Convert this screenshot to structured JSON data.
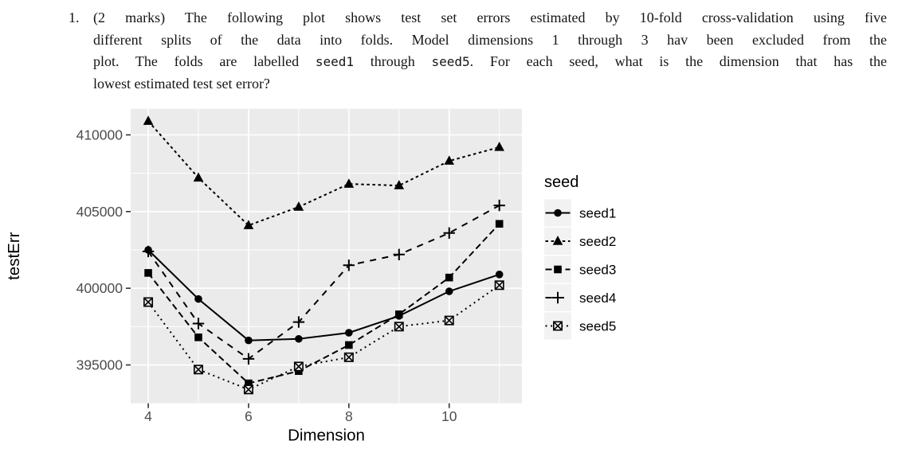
{
  "question": {
    "number": "1.",
    "line1": "(2 marks) The following plot shows test set errors estimated by 10-fold cross-validation using five",
    "line2": "different splits of the data into folds. Model dimensions 1 through 3 hav been excluded from the",
    "line3_pre": "plot. The folds are labelled ",
    "line3_code1": "seed1",
    "line3_mid": " through ",
    "line3_code2": "seed5",
    "line3_post": ". For each seed, what is the dimension that has the",
    "line4": "lowest estimated test set error?"
  },
  "chart_data": {
    "type": "line",
    "title": "",
    "xlabel": "Dimension",
    "ylabel": "testErr",
    "legend_title": "seed",
    "legend_position": "right",
    "grid": true,
    "panel_bg": "#EBEBEB",
    "grid_color": "#FFFFFF",
    "legend_key_bg": "#F2F2F2",
    "tick_label_color": "#4D4D50",
    "tick_mark_color": "#333333",
    "data_color": "#000000",
    "x": [
      4,
      5,
      6,
      7,
      8,
      9,
      10,
      11
    ],
    "series": [
      {
        "name": "seed1",
        "marker": "circle",
        "linetype": "solid",
        "values": [
          402500,
          399300,
          396600,
          396700,
          397100,
          398200,
          399800,
          400900
        ]
      },
      {
        "name": "seed2",
        "marker": "triangle",
        "linetype": "22",
        "values": [
          410900,
          407200,
          404100,
          405300,
          406800,
          406700,
          408300,
          409200
        ]
      },
      {
        "name": "seed3",
        "marker": "square",
        "linetype": "42",
        "values": [
          401000,
          396800,
          393800,
          394600,
          396300,
          398300,
          400700,
          404200
        ]
      },
      {
        "name": "seed4",
        "marker": "plus",
        "linetype": "44",
        "values": [
          402400,
          397700,
          395400,
          397800,
          401500,
          402200,
          403600,
          405400
        ]
      },
      {
        "name": "seed5",
        "marker": "box-x",
        "linetype": "13",
        "values": [
          399100,
          394700,
          393400,
          394900,
          395500,
          397500,
          397900,
          400200
        ]
      }
    ],
    "x_ticks": [
      4,
      6,
      8,
      10
    ],
    "x_minor": [
      5,
      7,
      9,
      11
    ],
    "y_ticks": [
      395000,
      400000,
      405000,
      410000
    ],
    "y_minor": [
      397500,
      402500,
      407500
    ],
    "xlim": [
      3.65,
      11.45
    ],
    "ylim": [
      392500,
      411700
    ]
  }
}
